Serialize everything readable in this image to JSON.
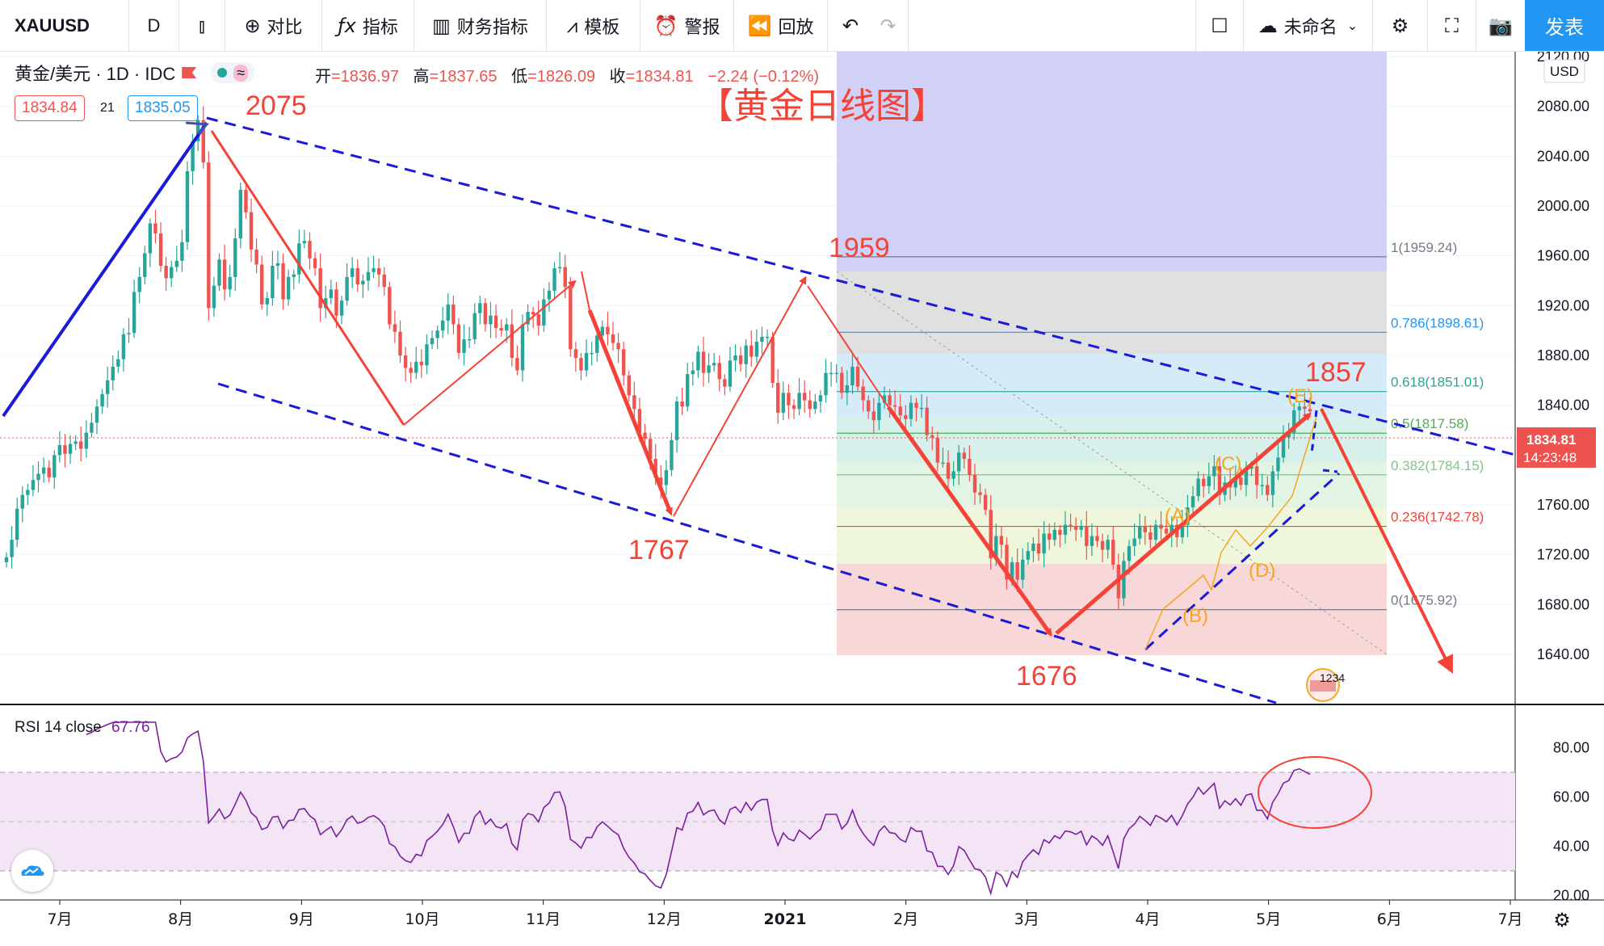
{
  "toolbar": {
    "symbol": "XAUUSD",
    "interval": "D",
    "compare": "对比",
    "indicators": "指标",
    "financials": "财务指标",
    "templates": "模板",
    "alert": "警报",
    "replay": "回放",
    "layout_name": "未命名",
    "publish": "发表"
  },
  "legend": {
    "title": "黄金/美元 · 1D · IDC",
    "open_label": "开",
    "open": "=1836.97",
    "high_label": "高",
    "high": "=1837.65",
    "low_label": "低",
    "low": "=1826.09",
    "close_label": "收",
    "close": "=1834.81",
    "change": "−2.24 (−0.12%)",
    "bid": "1834.84",
    "spread": "21",
    "ask": "1835.05"
  },
  "currency": "USD",
  "chart_data": {
    "type": "candlestick",
    "title": "【黄金日线图】",
    "price_axis": {
      "ticks": [
        "2120.00",
        "2080.00",
        "2040.00",
        "2000.00",
        "1960.00",
        "1920.00",
        "1880.00",
        "1840.00",
        "1800.00",
        "1760.00",
        "1720.00",
        "1680.00",
        "1640.00"
      ],
      "range": [
        1640,
        2120
      ],
      "last_price": "1834.81",
      "countdown": "14:23:48"
    },
    "time_axis": [
      "7月",
      "8月",
      "9月",
      "10月",
      "11月",
      "12月",
      "2021",
      "2月",
      "3月",
      "4月",
      "5月",
      "6月",
      "7月"
    ],
    "swing_labels": [
      "2075",
      "1959",
      "1767",
      "1676",
      "1857"
    ],
    "wave_labels": [
      "(A)",
      "(B)",
      "(C)",
      "(D)",
      "(E)"
    ],
    "fibonacci": [
      {
        "level": "1(1959.24)",
        "price": 1959.24,
        "color": "#787b86"
      },
      {
        "level": "0.786(1898.61)",
        "price": 1898.61,
        "color": "#2196f3"
      },
      {
        "level": "0.618(1851.01)",
        "price": 1851.01,
        "color": "#26a69a"
      },
      {
        "level": "0.5(1817.58)",
        "price": 1817.58,
        "color": "#4caf50"
      },
      {
        "level": "0.382(1784.15)",
        "price": 1784.15,
        "color": "#81c784"
      },
      {
        "level": "0.236(1742.78)",
        "price": 1742.78,
        "color": "#f44336"
      },
      {
        "level": "0(1675.92)",
        "price": 1675.92,
        "color": "#787b86"
      }
    ],
    "closes": [
      1718,
      1732,
      1757,
      1768,
      1772,
      1780,
      1785,
      1790,
      1782,
      1800,
      1808,
      1801,
      1809,
      1811,
      1805,
      1818,
      1826,
      1839,
      1849,
      1860,
      1871,
      1877,
      1897,
      1898,
      1931,
      1943,
      1962,
      1986,
      1978,
      1952,
      1942,
      1951,
      1956,
      1971,
      2028,
      2052,
      2069,
      2035,
      1918,
      1936,
      1957,
      1933,
      1943,
      1974,
      2013,
      1995,
      1965,
      1953,
      1921,
      1926,
      1952,
      1954,
      1925,
      1943,
      1945,
      1970,
      1972,
      1958,
      1950,
      1918,
      1926,
      1933,
      1912,
      1924,
      1943,
      1950,
      1937,
      1940,
      1947,
      1950,
      1945,
      1935,
      1905,
      1899,
      1880,
      1870,
      1866,
      1875,
      1872,
      1889,
      1894,
      1900,
      1908,
      1921,
      1905,
      1882,
      1893,
      1893,
      1914,
      1922,
      1905,
      1912,
      1902,
      1900,
      1905,
      1878,
      1868,
      1905,
      1915,
      1913,
      1904,
      1925,
      1932,
      1950,
      1951,
      1935,
      1885,
      1878,
      1868,
      1882,
      1882,
      1896,
      1903,
      1897,
      1890,
      1885,
      1864,
      1848,
      1837,
      1818,
      1813,
      1797,
      1782,
      1776,
      1788,
      1812,
      1843,
      1839,
      1865,
      1868,
      1883,
      1866,
      1872,
      1874,
      1861,
      1855,
      1876,
      1880,
      1873,
      1888,
      1879,
      1891,
      1895,
      1895,
      1858,
      1834,
      1850,
      1840,
      1837,
      1850,
      1844,
      1837,
      1843,
      1848,
      1866,
      1866,
      1866,
      1850,
      1856,
      1871,
      1855,
      1844,
      1835,
      1828,
      1842,
      1848,
      1840,
      1839,
      1832,
      1829,
      1842,
      1838,
      1838,
      1816,
      1814,
      1794,
      1794,
      1781,
      1787,
      1802,
      1797,
      1784,
      1770,
      1768,
      1756,
      1717,
      1735,
      1728,
      1700,
      1714,
      1700,
      1716,
      1723,
      1729,
      1721,
      1737,
      1732,
      1740,
      1736,
      1744,
      1743,
      1740,
      1743,
      1727,
      1735,
      1731,
      1724,
      1732,
      1712,
      1685,
      1715,
      1727,
      1733,
      1743,
      1738,
      1732,
      1744,
      1741,
      1737,
      1744,
      1734,
      1744,
      1758,
      1767,
      1781,
      1775,
      1783,
      1791,
      1768,
      1778,
      1774,
      1782,
      1776,
      1789,
      1791,
      1776,
      1776,
      1768,
      1787,
      1798,
      1814,
      1818,
      1836,
      1839,
      1837,
      1835
    ],
    "rsi": {
      "label": "RSI 14 close",
      "value": "67.76",
      "ticks": [
        "80.00",
        "60.00",
        "40.00",
        "20.00"
      ],
      "upper": 70,
      "lower": 30
    }
  },
  "colors": {
    "up": "#26a69a",
    "down": "#ef5350",
    "annotation_red": "#f44336",
    "channel_blue": "#1a1ad8",
    "wave_orange": "#f5a623",
    "rsi_line": "#7b1fa2",
    "rsi_band": "#f3e5f5",
    "accent": "#2196f3"
  },
  "icons": [
    "candles-icon",
    "plus-circle-icon",
    "fx-icon",
    "bar-chart-icon",
    "template-icon",
    "alarm-icon",
    "rewind-icon",
    "undo-icon",
    "redo-icon",
    "square-icon",
    "cloud-icon",
    "gear-icon",
    "fullscreen-icon",
    "camera-icon"
  ]
}
